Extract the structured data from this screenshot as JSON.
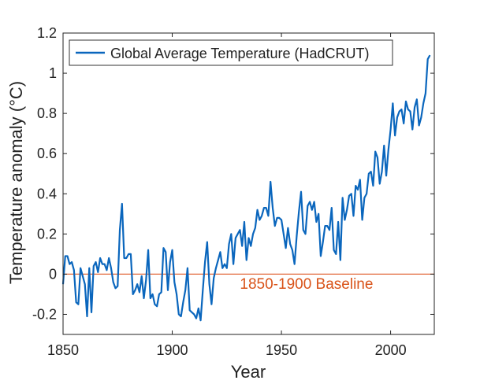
{
  "chart_data": {
    "type": "line",
    "xlabel": "Year",
    "ylabel": "Temperature anomaly (°C)",
    "xlim": [
      1850,
      2020
    ],
    "ylim": [
      -0.3,
      1.2
    ],
    "x_ticks": [
      "1850",
      "1900",
      "1950",
      "2000"
    ],
    "y_ticks": [
      "-0.2",
      "0",
      "0.2",
      "0.4",
      "0.6",
      "0.8",
      "1",
      "1.2"
    ],
    "x_tick_values": [
      1850,
      1900,
      1950,
      2000
    ],
    "y_tick_values": [
      -0.2,
      0,
      0.2,
      0.4,
      0.6,
      0.8,
      1,
      1.2
    ],
    "grid": false,
    "legend": {
      "position": "top-left",
      "entries": [
        "Global Average Temperature (HadCRUT)"
      ]
    },
    "series": [
      {
        "name": "Global Average Temperature (HadCRUT)",
        "color": "#0a66bd",
        "x_start": 1850,
        "x_step": 1,
        "values": [
          -0.05,
          0.09,
          0.09,
          0.05,
          0.06,
          0.02,
          -0.14,
          -0.15,
          0.03,
          -0.01,
          -0.05,
          -0.21,
          0.03,
          -0.19,
          0.04,
          0.06,
          0.01,
          0.08,
          0.05,
          0.05,
          0.02,
          0.08,
          0.03,
          -0.04,
          -0.07,
          -0.06,
          0.22,
          0.35,
          0.08,
          0.08,
          0.1,
          0.1,
          -0.1,
          -0.08,
          -0.05,
          -0.09,
          -0.01,
          -0.12,
          -0.03,
          0.12,
          -0.12,
          -0.1,
          -0.15,
          -0.16,
          -0.1,
          -0.09,
          0.13,
          0.11,
          -0.08,
          0.06,
          0.12,
          -0.04,
          -0.1,
          -0.2,
          -0.21,
          -0.14,
          -0.08,
          0.03,
          -0.18,
          -0.19,
          -0.2,
          -0.22,
          -0.17,
          -0.23,
          -0.08,
          0.06,
          0.16,
          -0.05,
          -0.15,
          -0.02,
          0.03,
          0.07,
          0.11,
          0.03,
          0.05,
          0.03,
          0.15,
          0.2,
          0.05,
          0.18,
          0.2,
          0.22,
          0.14,
          0.26,
          0.07,
          0.18,
          0.14,
          0.2,
          0.23,
          0.32,
          0.27,
          0.29,
          0.33,
          0.33,
          0.29,
          0.46,
          0.33,
          0.24,
          0.28,
          0.28,
          0.27,
          0.2,
          0.13,
          0.23,
          0.15,
          0.12,
          0.05,
          0.19,
          0.31,
          0.41,
          0.22,
          0.2,
          0.34,
          0.36,
          0.32,
          0.36,
          0.26,
          0.3,
          0.09,
          0.16,
          0.24,
          0.24,
          0.22,
          0.33,
          0.12,
          0.1,
          0.26,
          0.07,
          0.38,
          0.27,
          0.32,
          0.39,
          0.4,
          0.29,
          0.44,
          0.42,
          0.47,
          0.27,
          0.38,
          0.4,
          0.5,
          0.51,
          0.44,
          0.61,
          0.58,
          0.45,
          0.51,
          0.64,
          0.49,
          0.62,
          0.72,
          0.85,
          0.69,
          0.78,
          0.81,
          0.82,
          0.75,
          0.86,
          0.82,
          0.81,
          0.72,
          0.83,
          0.87,
          0.74,
          0.78,
          0.85,
          0.9,
          1.07,
          1.09
        ]
      },
      {
        "name": "1850-1900 Baseline",
        "color": "#e2683a",
        "x": [
          1850,
          2020
        ],
        "values": [
          0,
          0
        ]
      }
    ],
    "annotations": [
      {
        "text": "1850-1900 Baseline",
        "x": 1931,
        "y": -0.05,
        "color": "#d95319"
      }
    ]
  }
}
